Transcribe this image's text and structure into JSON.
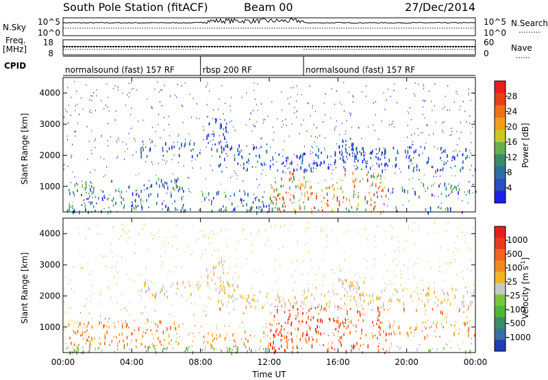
{
  "header": {
    "title": "South Pole Station (fitACF)",
    "beam": "Beam 00",
    "date": "27/Dec/2014"
  },
  "chart_data": [
    {
      "type": "line",
      "name": "nsky-nsearch-panel",
      "left_label": "N.Sky",
      "right_label": "N.Search",
      "left_ticks": [
        "10^5",
        "10^0"
      ],
      "right_ticks": [
        "10^5",
        "10^0"
      ],
      "x_range_hours": [
        0,
        24
      ]
    },
    {
      "type": "line",
      "name": "freq-nave-panel",
      "left_label_line1": "Freq.",
      "left_label_line2": "[MHz]",
      "right_label": "Nave",
      "left_ticks": [
        "18",
        "8"
      ],
      "right_ticks": [
        "60",
        "0"
      ],
      "x_range_hours": [
        0,
        24
      ]
    },
    {
      "type": "table",
      "name": "cpid-strip",
      "label": "CPID",
      "segments": [
        {
          "start_hour": 0,
          "end_hour": 8,
          "label": "normalsound (fast) 157 RF"
        },
        {
          "start_hour": 8,
          "end_hour": 14,
          "label": "rbsp 200 RF"
        },
        {
          "start_hour": 14,
          "end_hour": 24,
          "label": "normalsound (fast) 157 RF"
        }
      ]
    },
    {
      "type": "heatmap",
      "name": "power-panel",
      "ylabel": "Slant Range [km]",
      "yticks": [
        1000,
        2000,
        3000,
        4000
      ],
      "ylim": [
        180,
        4500
      ],
      "x_range_hours": [
        0,
        24
      ],
      "colorbar": {
        "label": "Power [dB]",
        "ticks": [
          "28",
          "24",
          "20",
          "16",
          "12",
          "8",
          "4"
        ],
        "colors": [
          "#1e1ee6",
          "#2a4fc0",
          "#2d6ea0",
          "#3a8a6a",
          "#66b24a",
          "#c8c81e",
          "#f0a018",
          "#f07018",
          "#e8401a",
          "#e61e1e"
        ]
      }
    },
    {
      "type": "heatmap",
      "name": "velocity-panel",
      "ylabel": "Slant Range [km]",
      "yticks": [
        1000,
        2000,
        3000,
        4000
      ],
      "ylim": [
        180,
        4500
      ],
      "x_range_hours": [
        0,
        24
      ],
      "xticks": [
        "00:00",
        "04:00",
        "08:00",
        "12:00",
        "16:00",
        "20:00",
        "00:00"
      ],
      "xlabel": "Time UT",
      "colorbar": {
        "label": "Velocity [m s",
        "label_sup": "-1",
        "label_end": "]",
        "ticks": [
          "1000",
          "500",
          "100",
          "25",
          "-25",
          "-100",
          "-500",
          "-1000"
        ],
        "colors": [
          "#1e3cb4",
          "#3a6ea0",
          "#3c8c64",
          "#50b43c",
          "#78c83c",
          "#c8c8c8",
          "#f0b428",
          "#f08c1e",
          "#f0641e",
          "#e63c1e",
          "#e61e1e"
        ]
      }
    }
  ]
}
